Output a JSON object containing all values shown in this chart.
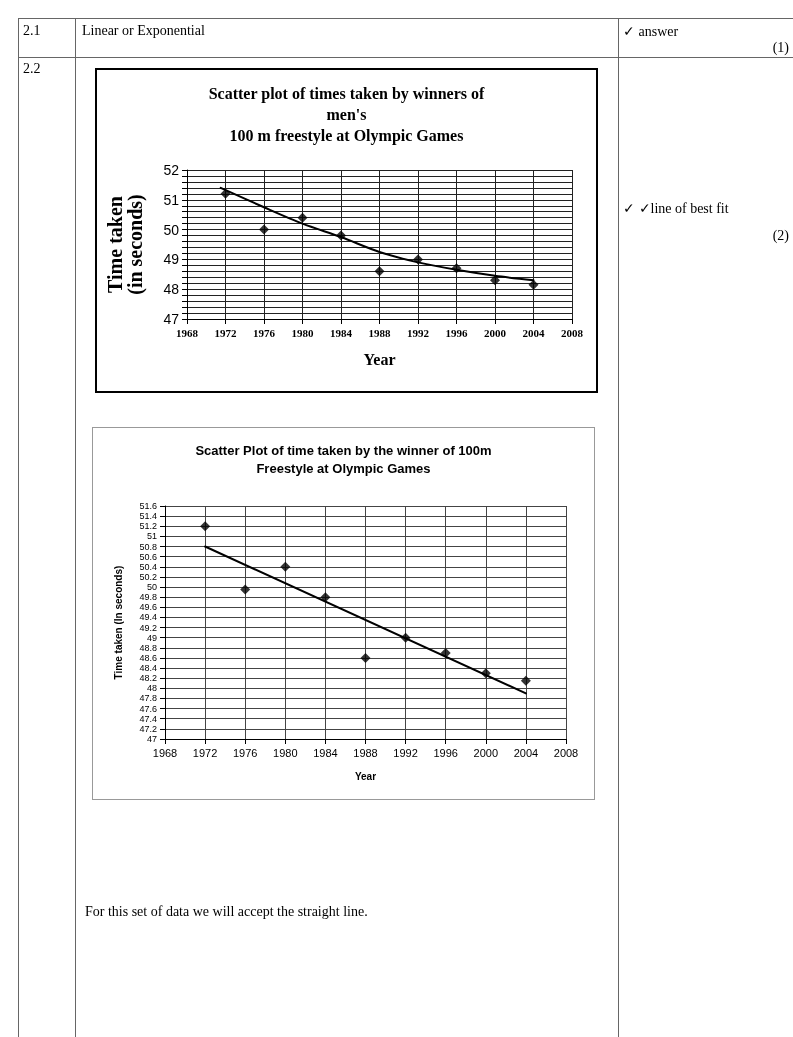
{
  "chart_data": [
    {
      "type": "scatter",
      "title": "Scatter plot of times taken by winners of\nmen's\n100 m freestyle at Olympic Games",
      "xlabel": "Year",
      "ylabel": "Time taken\n(in seconds)",
      "x": [
        1972,
        1976,
        1980,
        1984,
        1988,
        1992,
        1996,
        2000,
        2004
      ],
      "series": [
        {
          "color": "#000000",
          "values": [
            51.2,
            50.0,
            50.4,
            49.8,
            48.6,
            49.0,
            48.7,
            48.3,
            48.15
          ]
        },
        {
          "type": "line",
          "color": "#000000",
          "marker": "none",
          "x": [
            1971.5,
            1976,
            1980,
            1984,
            1988,
            1992,
            1996,
            2000,
            2004
          ],
          "values": [
            51.4,
            50.75,
            50.2,
            49.75,
            49.25,
            48.9,
            48.65,
            48.45,
            48.3
          ]
        }
      ],
      "xlim": [
        1968,
        2008
      ],
      "xticks": [
        1968,
        1972,
        1976,
        1980,
        1984,
        1988,
        1992,
        1996,
        2000,
        2004,
        2008
      ],
      "ylim": [
        47,
        52
      ],
      "yticks": [
        47,
        {
          "value": 47.2,
          "label": null
        },
        {
          "value": 47.4,
          "label": null
        },
        {
          "value": 47.6,
          "label": null
        },
        {
          "value": 47.8,
          "label": null
        },
        48,
        {
          "value": 48.2,
          "label": null
        },
        {
          "value": 48.4,
          "label": null
        },
        {
          "value": 48.6,
          "label": null
        },
        {
          "value": 48.8,
          "label": null
        },
        49,
        {
          "value": 49.2,
          "label": null
        },
        {
          "value": 49.4,
          "label": null
        },
        {
          "value": 49.6,
          "label": null
        },
        {
          "value": 49.8,
          "label": null
        },
        50,
        {
          "value": 50.2,
          "label": null
        },
        {
          "value": 50.4,
          "label": null
        },
        {
          "value": 50.6,
          "label": null
        },
        {
          "value": 50.8,
          "label": null
        },
        51,
        {
          "value": 51.2,
          "label": null
        },
        {
          "value": 51.4,
          "label": null
        },
        {
          "value": 51.6,
          "label": null
        },
        {
          "value": 51.8,
          "label": null
        },
        52
      ],
      "grid": true,
      "marker": "diamond",
      "annotations": [
        "2.1",
        "Linear or Exponential",
        "✓ answer",
        "(1)",
        "2.2",
        "✓ ✓line of best fit",
        "(2)"
      ]
    },
    {
      "type": "scatter",
      "title": "Scatter Plot of time taken by the winner of 100m\nFreestyle at Olympic Games",
      "xlabel": "Year",
      "ylabel": "Time taken (In seconds)",
      "x": [
        1972,
        1976,
        1980,
        1984,
        1988,
        1992,
        1996,
        2000,
        2004
      ],
      "series": [
        {
          "color": "#000000",
          "values": [
            51.2,
            49.95,
            50.4,
            49.8,
            48.6,
            49.0,
            48.7,
            48.3,
            48.15
          ]
        },
        {
          "type": "line",
          "color": "#000000",
          "marker": "none",
          "x": [
            1972,
            2004
          ],
          "values": [
            50.8,
            47.9
          ]
        }
      ],
      "xlim": [
        1968,
        2008
      ],
      "xticks": [
        1968,
        1972,
        1976,
        1980,
        1984,
        1988,
        1992,
        1996,
        2000,
        2004,
        2008
      ],
      "ylim": [
        47,
        51.6
      ],
      "yticks": [
        47,
        47.2,
        47.4,
        47.6,
        47.8,
        48,
        48.2,
        48.4,
        48.6,
        48.8,
        49,
        49.2,
        49.4,
        49.6,
        49.8,
        50,
        50.2,
        50.4,
        50.6,
        50.8,
        51,
        51.2,
        51.4,
        51.6
      ],
      "grid": true,
      "marker": "diamond",
      "annotations": [
        "For this set of data we will accept the straight line."
      ]
    }
  ]
}
